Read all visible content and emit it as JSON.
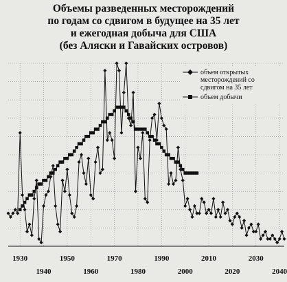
{
  "chart_data": {
    "type": "line",
    "title_lines": [
      "Объемы разведенных месторождений",
      "по годам со сдвигом в будущее на 35 лет",
      "и ежегодная добыча для США",
      "(без Аляски и Гавайских островов)"
    ],
    "xlabel": "",
    "ylabel": "",
    "xlim": [
      1925,
      2042
    ],
    "ylim": [
      0,
      100
    ],
    "grid": true,
    "legend_position": "top-right",
    "x_ticks_upper": [
      1930,
      1950,
      1970,
      1990,
      2010,
      2030
    ],
    "x_ticks_lower": [
      1940,
      1960,
      1980,
      2000,
      2020,
      2040
    ],
    "series": [
      {
        "name": "объем открытых месторождений со сдвигом на 35 лет",
        "marker": "diamond",
        "x": [
          1925,
          1926,
          1927,
          1928,
          1929,
          1930,
          1931,
          1932,
          1933,
          1934,
          1935,
          1936,
          1937,
          1938,
          1939,
          1940,
          1941,
          1942,
          1943,
          1944,
          1945,
          1946,
          1947,
          1948,
          1949,
          1950,
          1951,
          1952,
          1953,
          1954,
          1955,
          1956,
          1957,
          1958,
          1959,
          1960,
          1961,
          1962,
          1963,
          1964,
          1965,
          1966,
          1967,
          1968,
          1969,
          1970,
          1971,
          1972,
          1973,
          1974,
          1975,
          1976,
          1977,
          1978,
          1979,
          1980,
          1981,
          1982,
          1983,
          1984,
          1985,
          1986,
          1987,
          1988,
          1989,
          1990,
          1991,
          1992,
          1993,
          1994,
          1995,
          1996,
          1997,
          1998,
          1999,
          2000,
          2001,
          2002,
          2003,
          2004,
          2005,
          2006,
          2007,
          2008,
          2009,
          2010,
          2011,
          2012,
          2013,
          2014,
          2015,
          2016,
          2017,
          2018,
          2019,
          2020,
          2021,
          2022,
          2023,
          2024,
          2025,
          2026,
          2027,
          2028,
          2029,
          2030,
          2031,
          2032,
          2033,
          2034,
          2035,
          2036,
          2037,
          2038,
          2039,
          2040,
          2041,
          2042
        ],
        "y": [
          18,
          16,
          18,
          20,
          18,
          62,
          28,
          20,
          8,
          12,
          6,
          26,
          36,
          4,
          2,
          22,
          28,
          30,
          38,
          44,
          22,
          12,
          8,
          36,
          30,
          42,
          28,
          18,
          16,
          22,
          46,
          50,
          40,
          34,
          48,
          28,
          26,
          46,
          54,
          40,
          42,
          96,
          58,
          62,
          58,
          48,
          100,
          96,
          62,
          84,
          100,
          70,
          66,
          84,
          30,
          54,
          48,
          62,
          26,
          24,
          58,
          70,
          72,
          58,
          78,
          70,
          66,
          64,
          34,
          40,
          34,
          36,
          54,
          42,
          36,
          22,
          26,
          20,
          16,
          22,
          18,
          18,
          26,
          24,
          18,
          20,
          18,
          26,
          16,
          20,
          16,
          24,
          18,
          20,
          14,
          12,
          16,
          18,
          16,
          10,
          14,
          6,
          10,
          12,
          8,
          8,
          12,
          4,
          6,
          8,
          4,
          4,
          6,
          4,
          2,
          4,
          8,
          4
        ]
      },
      {
        "name": "объем добычи",
        "marker": "square",
        "x": [
          1930,
          1931,
          1932,
          1933,
          1934,
          1935,
          1936,
          1937,
          1938,
          1939,
          1940,
          1941,
          1942,
          1943,
          1944,
          1945,
          1946,
          1947,
          1948,
          1949,
          1950,
          1951,
          1952,
          1953,
          1954,
          1955,
          1956,
          1957,
          1958,
          1959,
          1960,
          1961,
          1962,
          1963,
          1964,
          1965,
          1966,
          1967,
          1968,
          1969,
          1970,
          1971,
          1972,
          1973,
          1974,
          1975,
          1976,
          1977,
          1978,
          1979,
          1980,
          1981,
          1982,
          1983,
          1984,
          1985,
          1986,
          1987,
          1988,
          1989,
          1990,
          1991,
          1992,
          1993,
          1994,
          1995,
          1996,
          1997,
          1998,
          1999,
          2000,
          2001,
          2002,
          2003,
          2004,
          2005
        ],
        "y": [
          20,
          22,
          24,
          26,
          28,
          28,
          30,
          32,
          34,
          34,
          36,
          36,
          38,
          40,
          40,
          42,
          44,
          46,
          46,
          48,
          48,
          50,
          50,
          52,
          54,
          56,
          56,
          58,
          60,
          60,
          62,
          62,
          64,
          64,
          66,
          68,
          68,
          70,
          72,
          72,
          74,
          76,
          76,
          76,
          76,
          74,
          72,
          70,
          68,
          64,
          64,
          64,
          64,
          64,
          62,
          60,
          60,
          58,
          56,
          56,
          54,
          52,
          50,
          50,
          48,
          48,
          46,
          46,
          44,
          42,
          40,
          40,
          40,
          40,
          40,
          40
        ]
      }
    ]
  }
}
